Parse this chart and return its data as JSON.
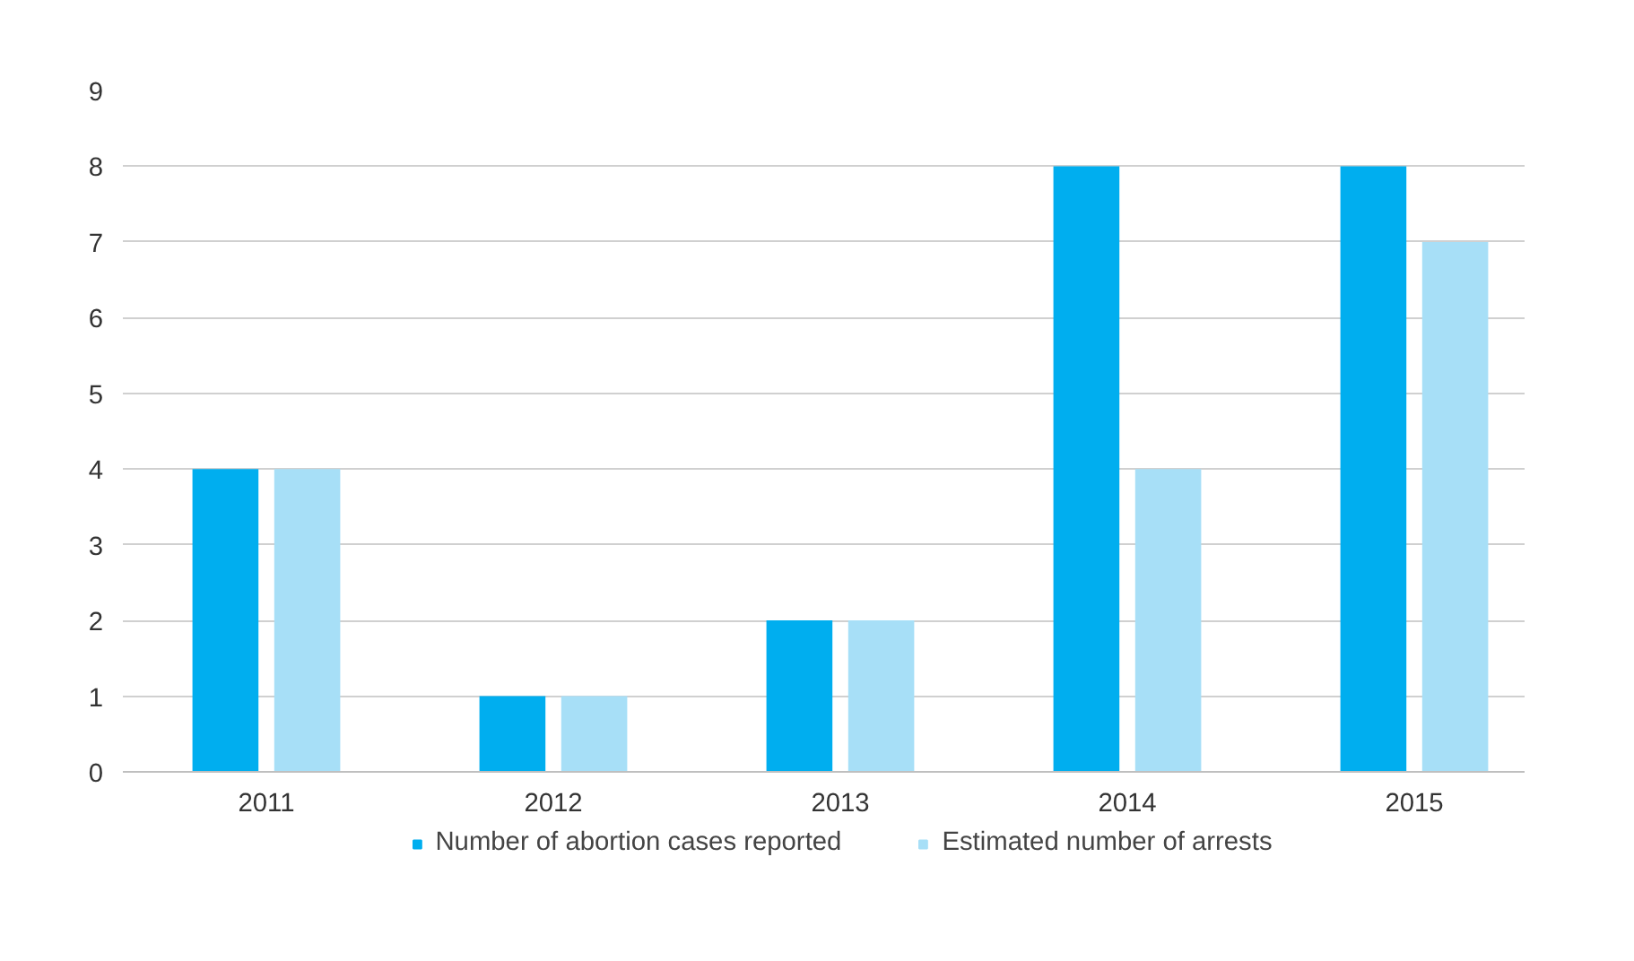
{
  "chart_data": {
    "type": "bar",
    "categories": [
      "2011",
      "2012",
      "2013",
      "2014",
      "2015"
    ],
    "series": [
      {
        "name": "Number of abortion cases reported",
        "color": "#00aeef",
        "values": [
          4,
          1,
          2,
          8,
          8
        ]
      },
      {
        "name": "Estimated number of arrests",
        "color": "#a7dff7",
        "values": [
          4,
          1,
          2,
          4,
          7
        ]
      }
    ],
    "ylim": [
      0,
      9
    ],
    "yticks": [
      0,
      1,
      2,
      3,
      4,
      5,
      6,
      7,
      8,
      9
    ],
    "grid": "y",
    "legend": "bottom"
  }
}
